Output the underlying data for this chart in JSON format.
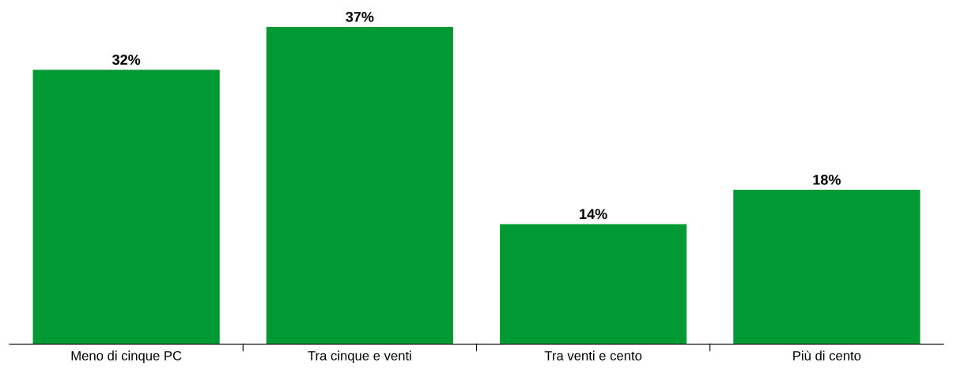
{
  "chart_data": {
    "type": "bar",
    "categories": [
      "Meno di cinque PC",
      "Tra cinque e venti",
      "Tra venti e cento",
      "Più di cento"
    ],
    "values": [
      32,
      37,
      14,
      18
    ],
    "value_labels": [
      "32%",
      "37%",
      "14%",
      "18%"
    ],
    "color": "#009933",
    "grid": false,
    "legend": false
  }
}
